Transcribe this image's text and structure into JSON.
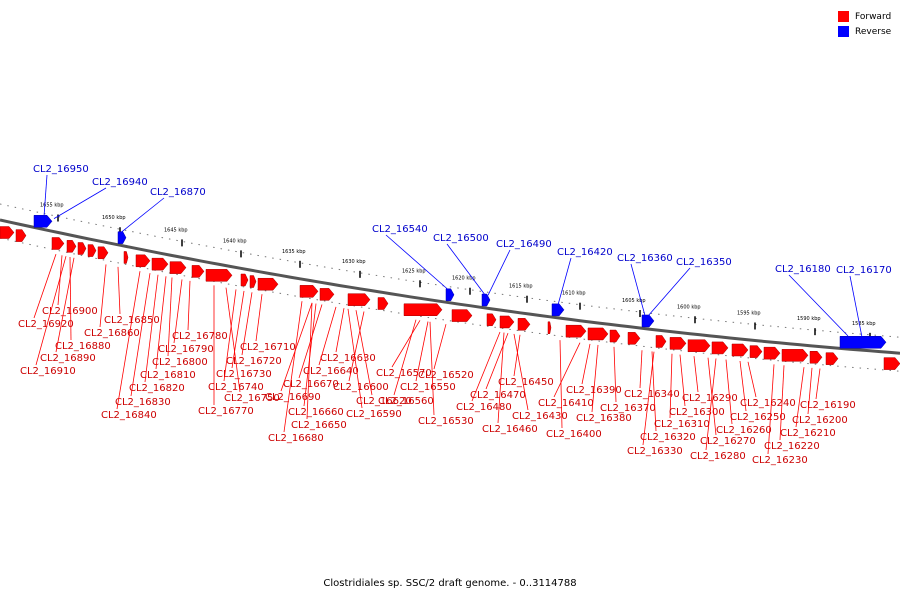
{
  "caption": "Clostridiales sp. SSC/2 draft genome. - 0..3114788",
  "colors": {
    "forward": "#ff0000",
    "reverse": "#0000ff",
    "backbone": "#555555",
    "label_forward": "#cc0000",
    "label_reverse": "#0000cc"
  },
  "legend": [
    {
      "label": "Forward",
      "color": "#ff0000",
      "icon": "red-square-swatch"
    },
    {
      "label": "Reverse",
      "color": "#0000ff",
      "icon": "blue-square-swatch"
    }
  ],
  "scale_ticks": [
    "1655 kbp",
    "1650 kbp",
    "1645 kbp",
    "1640 kbp",
    "1635 kbp",
    "1630 kbp",
    "1625 kbp",
    "1620 kbp",
    "1615 kbp",
    "1610 kbp",
    "1605 kbp",
    "1600 kbp",
    "1595 kbp",
    "1590 kbp",
    "1585 kbp"
  ],
  "reverse_genes": [
    "CL2_16950",
    "CL2_16940",
    "CL2_16870",
    "CL2_16540",
    "CL2_16500",
    "CL2_16490",
    "CL2_16420",
    "CL2_16360",
    "CL2_16350",
    "CL2_16180",
    "CL2_16170"
  ],
  "forward_genes": [
    "CL2_16900",
    "CL2_16920",
    "CL2_16880",
    "CL2_16890",
    "CL2_16910",
    "CL2_16850",
    "CL2_16860",
    "CL2_16780",
    "CL2_16790",
    "CL2_16800",
    "CL2_16810",
    "CL2_16820",
    "CL2_16830",
    "CL2_16840",
    "CL2_16710",
    "CL2_16720",
    "CL2_16730",
    "CL2_16740",
    "CL2_16750",
    "CL2_16770",
    "CL2_16630",
    "CL2_16640",
    "CL2_16670",
    "CL2_16690",
    "CL2_16660",
    "CL2_16650",
    "CL2_16680",
    "CL2_16570",
    "CL2_16550",
    "CL2_16560",
    "CL2_16600",
    "CL2_16620",
    "CL2_16590",
    "CL2_16520",
    "CL2_16530",
    "CL2_16450",
    "CL2_16470",
    "CL2_16480",
    "CL2_16430",
    "CL2_16460",
    "CL2_16390",
    "CL2_16410",
    "CL2_16400",
    "CL2_16380",
    "CL2_16370",
    "CL2_16340",
    "CL2_16320",
    "CL2_16330",
    "CL2_16310",
    "CL2_16300",
    "CL2_16290",
    "CL2_16270",
    "CL2_16280",
    "CL2_16260",
    "CL2_16250",
    "CL2_16240",
    "CL2_16190",
    "CL2_16200",
    "CL2_16210",
    "CL2_16220",
    "CL2_16230"
  ]
}
